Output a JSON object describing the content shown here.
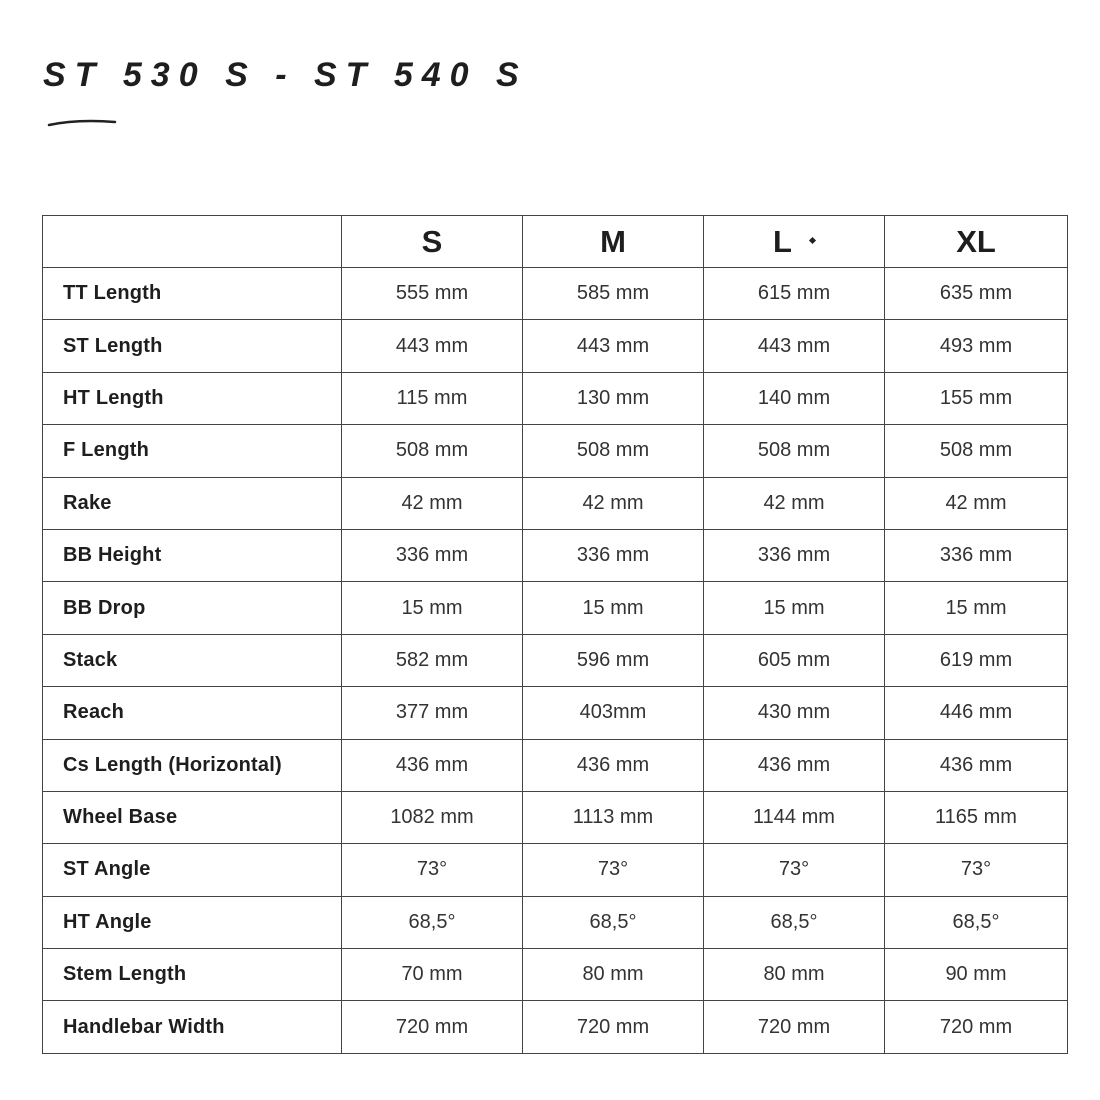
{
  "title": "ST 530 S - ST 540 S",
  "table": {
    "headers": [
      "",
      "S",
      "M",
      "L",
      "XL"
    ],
    "rows": [
      {
        "label": "TT Length",
        "values": [
          "555 mm",
          "585 mm",
          "615 mm",
          "635 mm"
        ]
      },
      {
        "label": "ST Length",
        "values": [
          "443 mm",
          "443 mm",
          "443 mm",
          "493 mm"
        ]
      },
      {
        "label": "HT Length",
        "values": [
          "115 mm",
          "130 mm",
          "140 mm",
          "155 mm"
        ]
      },
      {
        "label": "F Length",
        "values": [
          "508 mm",
          "508 mm",
          "508 mm",
          "508 mm"
        ]
      },
      {
        "label": "Rake",
        "values": [
          "42 mm",
          "42 mm",
          "42 mm",
          "42 mm"
        ]
      },
      {
        "label": "BB Height",
        "values": [
          "336 mm",
          "336 mm",
          "336 mm",
          "336 mm"
        ]
      },
      {
        "label": "BB Drop",
        "values": [
          "15 mm",
          "15 mm",
          "15 mm",
          "15 mm"
        ]
      },
      {
        "label": "Stack",
        "values": [
          "582 mm",
          "596 mm",
          "605 mm",
          "619 mm"
        ]
      },
      {
        "label": "Reach",
        "values": [
          "377 mm",
          "403mm",
          "430 mm",
          "446 mm"
        ]
      },
      {
        "label": "Cs Length (Horizontal)",
        "values": [
          "436 mm",
          "436 mm",
          "436 mm",
          "436 mm"
        ]
      },
      {
        "label": "Wheel Base",
        "values": [
          "1082 mm",
          "1113 mm",
          "1144 mm",
          "1165 mm"
        ]
      },
      {
        "label": "ST Angle",
        "values": [
          "73°",
          "73°",
          "73°",
          "73°"
        ]
      },
      {
        "label": "HT Angle",
        "values": [
          "68,5°",
          "68,5°",
          "68,5°",
          "68,5°"
        ]
      },
      {
        "label": "Stem Length",
        "values": [
          "70 mm",
          "80 mm",
          "80 mm",
          "90 mm"
        ]
      },
      {
        "label": "Handlebar Width",
        "values": [
          "720 mm",
          "720 mm",
          "720 mm",
          "720 mm"
        ]
      }
    ]
  }
}
